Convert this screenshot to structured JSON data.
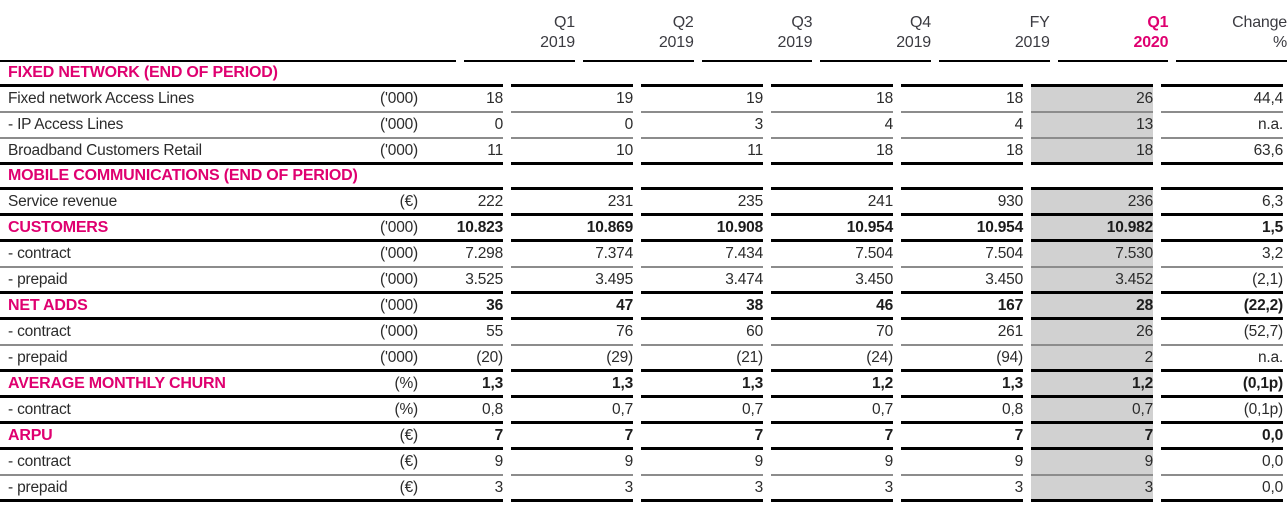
{
  "style": {
    "magenta": "#df0070",
    "highlight_bg": "#d1d1d1"
  },
  "header": {
    "columns": [
      {
        "line1": "Q1",
        "line2": "2019",
        "highlight": false
      },
      {
        "line1": "Q2",
        "line2": "2019",
        "highlight": false
      },
      {
        "line1": "Q3",
        "line2": "2019",
        "highlight": false
      },
      {
        "line1": "Q4",
        "line2": "2019",
        "highlight": false
      },
      {
        "line1": "FY",
        "line2": "2019",
        "highlight": false
      },
      {
        "line1": "Q1",
        "line2": "2020",
        "highlight": true
      },
      {
        "line1": "Change",
        "line2": "%",
        "highlight": false
      }
    ]
  },
  "rows": [
    {
      "type": "section",
      "label": "FIXED NETWORK (END OF PERIOD)",
      "border": "strong"
    },
    {
      "type": "data",
      "label": "Fixed network Access Lines",
      "unit": "('000)",
      "values": [
        "18",
        "19",
        "19",
        "18",
        "18",
        "26",
        "44,4"
      ],
      "border": "light",
      "emphasis": false
    },
    {
      "type": "data",
      "label": "- IP Access Lines",
      "unit": "('000)",
      "values": [
        "0",
        "0",
        "3",
        "4",
        "4",
        "13",
        "n.a."
      ],
      "border": "light",
      "emphasis": false
    },
    {
      "type": "data",
      "label": "Broadband Customers Retail",
      "unit": "('000)",
      "values": [
        "11",
        "10",
        "11",
        "18",
        "18",
        "18",
        "63,6"
      ],
      "border": "strong",
      "emphasis": false
    },
    {
      "type": "section",
      "label": "MOBILE COMMUNICATIONS (END OF PERIOD)",
      "border": "strong"
    },
    {
      "type": "data",
      "label": "Service revenue",
      "unit": "(€)",
      "values": [
        "222",
        "231",
        "235",
        "241",
        "930",
        "236",
        "6,3"
      ],
      "border": "strong",
      "emphasis": false
    },
    {
      "type": "data",
      "label": "CUSTOMERS",
      "unit": "('000)",
      "values": [
        "10.823",
        "10.869",
        "10.908",
        "10.954",
        "10.954",
        "10.982",
        "1,5"
      ],
      "border": "strong",
      "emphasis": true
    },
    {
      "type": "data",
      "label": "- contract",
      "unit": "('000)",
      "values": [
        "7.298",
        "7.374",
        "7.434",
        "7.504",
        "7.504",
        "7.530",
        "3,2"
      ],
      "border": "light",
      "emphasis": false
    },
    {
      "type": "data",
      "label": "- prepaid",
      "unit": "('000)",
      "values": [
        "3.525",
        "3.495",
        "3.474",
        "3.450",
        "3.450",
        "3.452",
        "(2,1)"
      ],
      "border": "strong",
      "emphasis": false
    },
    {
      "type": "data",
      "label": "NET ADDS",
      "unit": "('000)",
      "values": [
        "36",
        "47",
        "38",
        "46",
        "167",
        "28",
        "(22,2)"
      ],
      "border": "strong",
      "emphasis": true
    },
    {
      "type": "data",
      "label": "- contract",
      "unit": "('000)",
      "values": [
        "55",
        "76",
        "60",
        "70",
        "261",
        "26",
        "(52,7)"
      ],
      "border": "light",
      "emphasis": false
    },
    {
      "type": "data",
      "label": "- prepaid",
      "unit": "('000)",
      "values": [
        "(20)",
        "(29)",
        "(21)",
        "(24)",
        "(94)",
        "2",
        "n.a."
      ],
      "border": "strong",
      "emphasis": false
    },
    {
      "type": "data",
      "label": "AVERAGE MONTHLY CHURN",
      "unit": "(%)",
      "values": [
        "1,3",
        "1,3",
        "1,3",
        "1,2",
        "1,3",
        "1,2",
        "(0,1p)"
      ],
      "border": "strong",
      "emphasis": true
    },
    {
      "type": "data",
      "label": "- contract",
      "unit": "(%)",
      "values": [
        "0,8",
        "0,7",
        "0,7",
        "0,7",
        "0,8",
        "0,7",
        "(0,1p)"
      ],
      "border": "strong",
      "emphasis": false
    },
    {
      "type": "data",
      "label": "ARPU",
      "unit": "(€)",
      "values": [
        "7",
        "7",
        "7",
        "7",
        "7",
        "7",
        "0,0"
      ],
      "border": "strong",
      "emphasis": true
    },
    {
      "type": "data",
      "label": "- contract",
      "unit": "(€)",
      "values": [
        "9",
        "9",
        "9",
        "9",
        "9",
        "9",
        "0,0"
      ],
      "border": "light",
      "emphasis": false
    },
    {
      "type": "data",
      "label": "- prepaid",
      "unit": "(€)",
      "values": [
        "3",
        "3",
        "3",
        "3",
        "3",
        "3",
        "0,0"
      ],
      "border": "strong",
      "emphasis": false
    }
  ]
}
